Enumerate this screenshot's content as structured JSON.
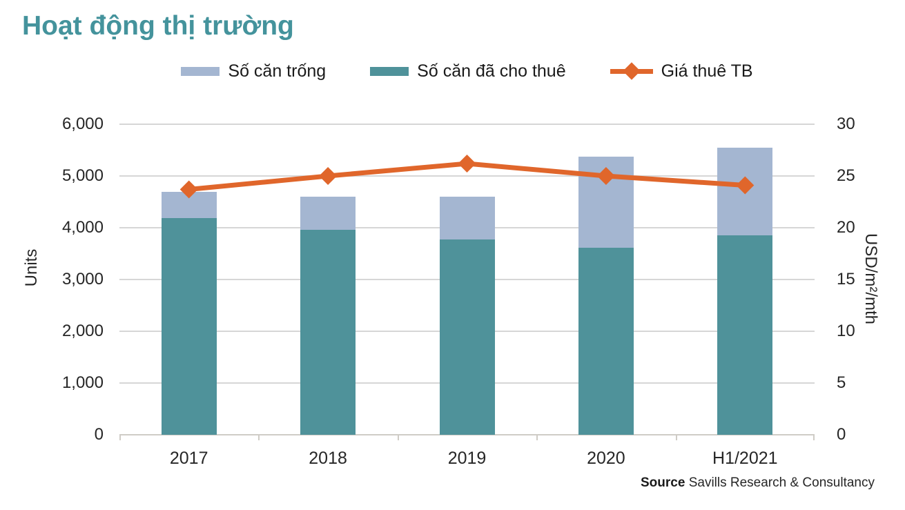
{
  "title": "Hoạt động thị trường",
  "legend": [
    {
      "label": "Số căn trống",
      "type": "box",
      "color": "#A4B6D1"
    },
    {
      "label": "Số căn đã cho thuê",
      "type": "box",
      "color": "#4F929A"
    },
    {
      "label": "Giá thuê TB",
      "type": "line-diamond",
      "color": "#E0662B"
    }
  ],
  "chart_data": {
    "type": "bar",
    "subtype": "stacked-bar-with-line-dual-axis",
    "title": "Hoạt động thị trường",
    "categories": [
      "2017",
      "2018",
      "2019",
      "2020",
      "H1/2021"
    ],
    "series": [
      {
        "name": "Số căn đã cho thuê",
        "type": "bar",
        "stack": 1,
        "axis": "left",
        "color": "#4F929A",
        "values": [
          4190,
          3960,
          3780,
          3610,
          3850
        ]
      },
      {
        "name": "Số căn trống",
        "type": "bar",
        "stack": 2,
        "axis": "left",
        "color": "#A4B6D1",
        "values": [
          500,
          640,
          820,
          1760,
          1700
        ]
      },
      {
        "name": "Giá thuê TB",
        "type": "line",
        "axis": "right",
        "color": "#E0662B",
        "values": [
          23.7,
          25.0,
          26.2,
          25.0,
          24.1
        ]
      }
    ],
    "stack_totals": [
      4690,
      4600,
      4600,
      5370,
      5550
    ],
    "left_axis": {
      "label": "Units",
      "min": 0,
      "max": 6000,
      "step": 1000,
      "ticks": [
        "6,000",
        "5,000",
        "4,000",
        "3,000",
        "2,000",
        "1,000",
        "0"
      ]
    },
    "right_axis": {
      "label": "USD/m²/mth",
      "min": 0,
      "max": 30,
      "step": 5,
      "ticks": [
        "30",
        "25",
        "20",
        "15",
        "10",
        "5",
        "0"
      ]
    },
    "grid": "horizontal",
    "legend_position": "top"
  },
  "source": {
    "bold": "Source",
    "text": "Savills Research & Consultancy"
  }
}
